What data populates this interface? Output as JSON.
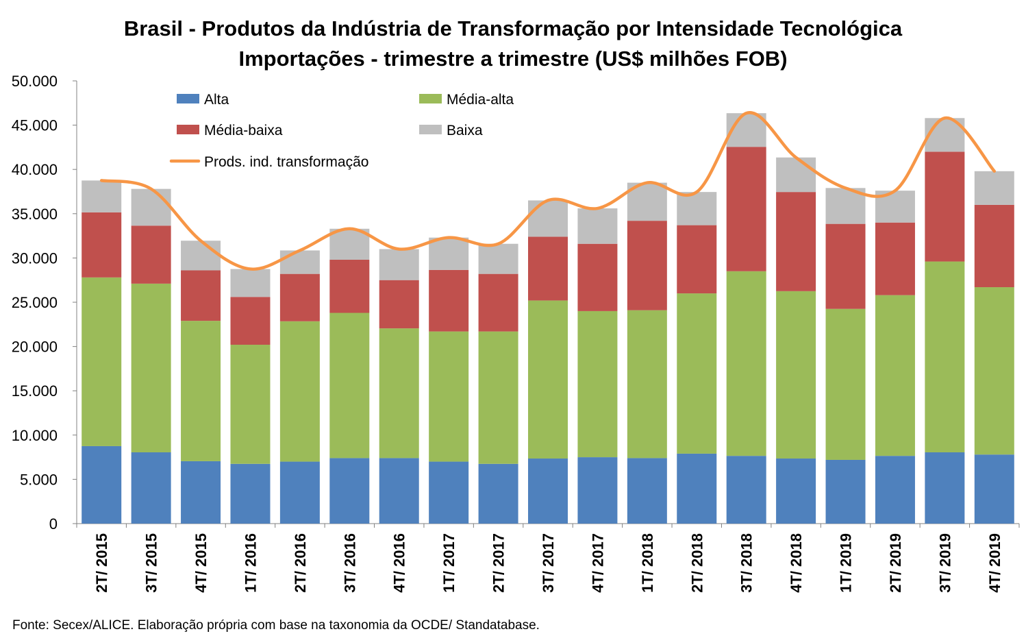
{
  "title_line1": "Brasil - Produtos da Indústria de Transformação por Intensidade Tecnológica",
  "title_line2": "Importações - trimestre a trimestre (US$ milhões FOB)",
  "source": "Fonte: Secex/ALICE. Elaboração própria com base na taxonomia da OCDE/ Standatabase.",
  "chart_data": {
    "type": "bar",
    "stacked": true,
    "categories": [
      "2T/ 2015",
      "3T/ 2015",
      "4T/ 2015",
      "1T/ 2016",
      "2T/ 2016",
      "3T/ 2016",
      "4T/ 2016",
      "1T/ 2017",
      "2T/ 2017",
      "3T/ 2017",
      "4T/ 2017",
      "1T/ 2018",
      "2T/ 2018",
      "3T/ 2018",
      "4T/ 2018",
      "1T/ 2019",
      "2T/ 2019",
      "3T/ 2019",
      "4T/ 2019"
    ],
    "series": [
      {
        "name": "Alta",
        "color": "#4F81BD",
        "values": [
          8750,
          8050,
          7050,
          6750,
          7000,
          7400,
          7400,
          7000,
          6750,
          7350,
          7500,
          7400,
          7900,
          7650,
          7350,
          7200,
          7650,
          8050,
          7800
        ]
      },
      {
        "name": "Média-alta",
        "color": "#9BBB59",
        "values": [
          19050,
          19050,
          15850,
          13450,
          15850,
          16400,
          14650,
          14700,
          14950,
          17850,
          16500,
          16700,
          18100,
          20850,
          18900,
          17050,
          18150,
          21550,
          18900
        ]
      },
      {
        "name": "Média-baixa",
        "color": "#C0504D",
        "values": [
          7350,
          6550,
          5700,
          5400,
          5350,
          6000,
          5450,
          6950,
          6500,
          7200,
          7600,
          10100,
          7700,
          14050,
          11200,
          9600,
          8200,
          12400,
          9300
        ]
      },
      {
        "name": "Baixa",
        "color": "#BFBFBF",
        "values": [
          3600,
          4150,
          3350,
          3150,
          2650,
          3500,
          3500,
          3650,
          3400,
          4100,
          4000,
          4300,
          3750,
          3800,
          3900,
          4050,
          3600,
          3800,
          3800
        ]
      },
      {
        "name": "Prods. ind. transformação",
        "type": "line",
        "color": "#F79646",
        "values": [
          38750,
          37800,
          31950,
          28750,
          30850,
          33300,
          31000,
          32300,
          31600,
          36500,
          35600,
          38500,
          37450,
          46350,
          41350,
          37900,
          37600,
          45800,
          39800
        ]
      }
    ],
    "ylim": [
      0,
      50000
    ],
    "yticks": [
      "0",
      "5.000",
      "10.000",
      "15.000",
      "20.000",
      "25.000",
      "30.000",
      "35.000",
      "40.000",
      "45.000",
      "50.000"
    ],
    "legend_position": "top-left",
    "grid": false
  }
}
